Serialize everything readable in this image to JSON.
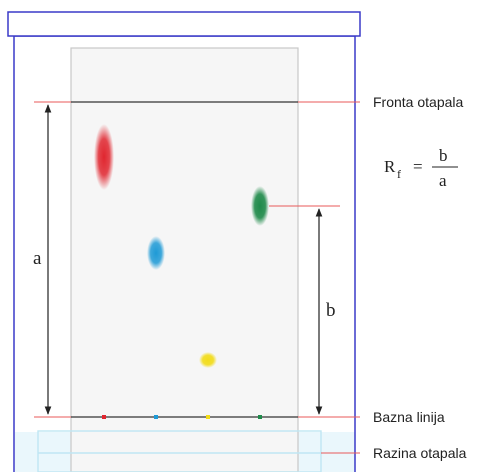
{
  "labels": {
    "solvent_front": "Fronta otapala",
    "baseline": "Bazna linija",
    "solvent_level": "Razina otapala",
    "distance_a": "a",
    "distance_b": "b"
  },
  "formula": {
    "lhs": "R",
    "subscript": "f",
    "equals": "=",
    "numerator": "b",
    "denominator": "a"
  },
  "colors": {
    "tank_outline": "#3a3ac8",
    "plate_outline": "#c8c8c8",
    "plate_fill": "#f6f6f6",
    "guide_line": "#e85a5a",
    "solvent": "#bfe6f3",
    "spot_red": "#e0262f",
    "spot_blue": "#1e9ad6",
    "spot_green": "#1f8a4a",
    "spot_yellow": "#f2dc1a"
  }
}
